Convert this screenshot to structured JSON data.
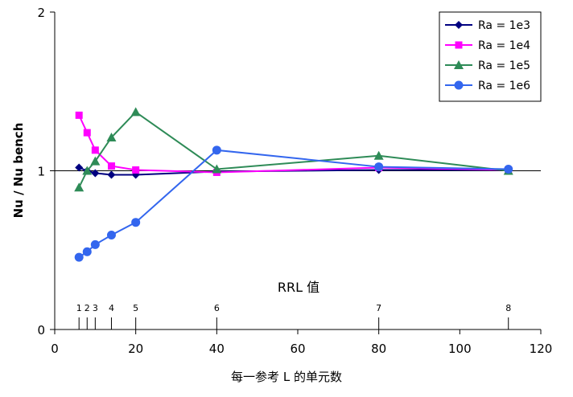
{
  "chart_data": {
    "type": "line",
    "xlabel": "每一参考 L 的单元数",
    "ylabel": "Nu / Nu bench",
    "xlim": [
      0,
      120
    ],
    "ylim": [
      0,
      2
    ],
    "x_ticks": [
      "0",
      "20",
      "40",
      "60",
      "80",
      "100",
      "120"
    ],
    "y_ticks": [
      "0",
      "1",
      "2"
    ],
    "grid": "horizontal line at y = 1 only",
    "legend_placement": "top-right",
    "rrl_annotation": {
      "title": "RRL 值",
      "markers": [
        {
          "label": "1",
          "x": 6
        },
        {
          "label": "2",
          "x": 8
        },
        {
          "label": "3",
          "x": 10
        },
        {
          "label": "4",
          "x": 14
        },
        {
          "label": "5",
          "x": 20
        },
        {
          "label": "6",
          "x": 40
        },
        {
          "label": "7",
          "x": 80
        },
        {
          "label": "8",
          "x": 112
        }
      ]
    },
    "series": [
      {
        "name": "Ra = 1e3",
        "color": "#000080",
        "marker": "diamond",
        "points": [
          [
            6,
            1.02
          ],
          [
            8,
            1.0
          ],
          [
            10,
            0.985
          ],
          [
            14,
            0.975
          ],
          [
            20,
            0.975
          ],
          [
            40,
            0.995
          ],
          [
            80,
            1.005
          ],
          [
            112,
            1.005
          ]
        ]
      },
      {
        "name": "Ra = 1e4",
        "color": "#ff00ff",
        "marker": "square",
        "points": [
          [
            6,
            1.35
          ],
          [
            8,
            1.24
          ],
          [
            10,
            1.13
          ],
          [
            14,
            1.03
          ],
          [
            20,
            1.005
          ],
          [
            40,
            0.99
          ],
          [
            80,
            1.02
          ],
          [
            112,
            1.005
          ]
        ]
      },
      {
        "name": "Ra = 1e5",
        "color": "#2e8b57",
        "marker": "triangle",
        "points": [
          [
            6,
            0.895
          ],
          [
            8,
            1.0
          ],
          [
            10,
            1.06
          ],
          [
            14,
            1.21
          ],
          [
            20,
            1.37
          ],
          [
            40,
            1.01
          ],
          [
            80,
            1.095
          ],
          [
            112,
            1.0
          ]
        ]
      },
      {
        "name": "Ra = 1e6",
        "color": "#3366ee",
        "marker": "circle",
        "points": [
          [
            6,
            0.455
          ],
          [
            8,
            0.49
          ],
          [
            10,
            0.535
          ],
          [
            14,
            0.595
          ],
          [
            20,
            0.675
          ],
          [
            40,
            1.13
          ],
          [
            80,
            1.025
          ],
          [
            112,
            1.01
          ]
        ]
      }
    ]
  }
}
